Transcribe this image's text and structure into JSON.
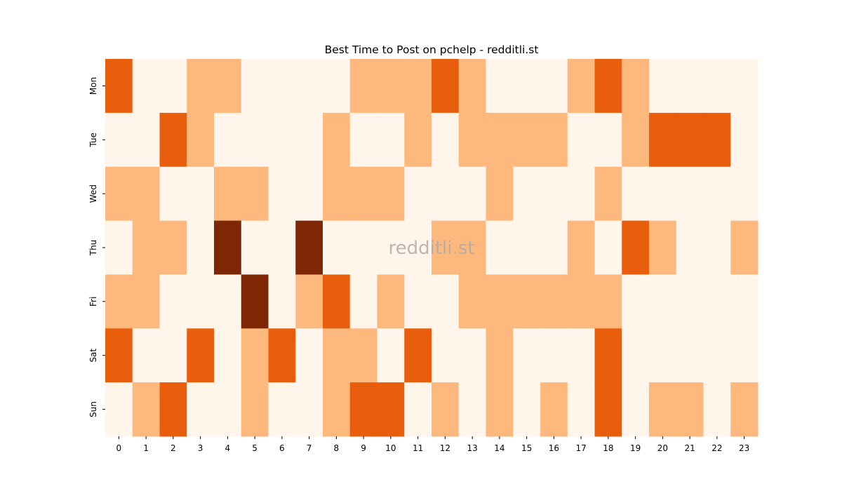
{
  "chart_data": {
    "type": "heatmap",
    "title": "Best Time to Post on pchelp - redditli.st",
    "watermark": "redditli.st",
    "x": [
      0,
      1,
      2,
      3,
      4,
      5,
      6,
      7,
      8,
      9,
      10,
      11,
      12,
      13,
      14,
      15,
      16,
      17,
      18,
      19,
      20,
      21,
      22,
      23
    ],
    "y": [
      "Mon",
      "Tue",
      "Wed",
      "Thu",
      "Fri",
      "Sat",
      "Sun"
    ],
    "z": [
      [
        2,
        0,
        0,
        1,
        1,
        0,
        0,
        0,
        0,
        1,
        1,
        1,
        2,
        1,
        0,
        0,
        0,
        1,
        2,
        1,
        0,
        0,
        0,
        0
      ],
      [
        0,
        0,
        2,
        1,
        0,
        0,
        0,
        0,
        1,
        0,
        0,
        1,
        0,
        1,
        1,
        1,
        1,
        0,
        0,
        1,
        2,
        2,
        2,
        0
      ],
      [
        1,
        1,
        0,
        0,
        1,
        1,
        0,
        0,
        1,
        1,
        1,
        0,
        0,
        0,
        1,
        0,
        0,
        0,
        1,
        0,
        0,
        0,
        0,
        0
      ],
      [
        0,
        1,
        1,
        0,
        3,
        0,
        0,
        3,
        0,
        0,
        0,
        0,
        1,
        1,
        0,
        0,
        0,
        1,
        0,
        2,
        1,
        0,
        0,
        1
      ],
      [
        1,
        1,
        0,
        0,
        0,
        3,
        0,
        1,
        2,
        0,
        1,
        0,
        0,
        1,
        1,
        1,
        1,
        1,
        1,
        0,
        0,
        0,
        0,
        0
      ],
      [
        2,
        0,
        0,
        2,
        0,
        1,
        2,
        0,
        1,
        1,
        0,
        2,
        0,
        0,
        1,
        0,
        0,
        0,
        2,
        0,
        0,
        0,
        0,
        0
      ],
      [
        0,
        1,
        2,
        0,
        0,
        1,
        0,
        0,
        1,
        2,
        2,
        0,
        1,
        0,
        1,
        0,
        1,
        0,
        2,
        0,
        1,
        1,
        0,
        1
      ]
    ],
    "colors": [
      "#fff5eb",
      "#fdb97d",
      "#e95e0d",
      "#7f2704"
    ]
  }
}
